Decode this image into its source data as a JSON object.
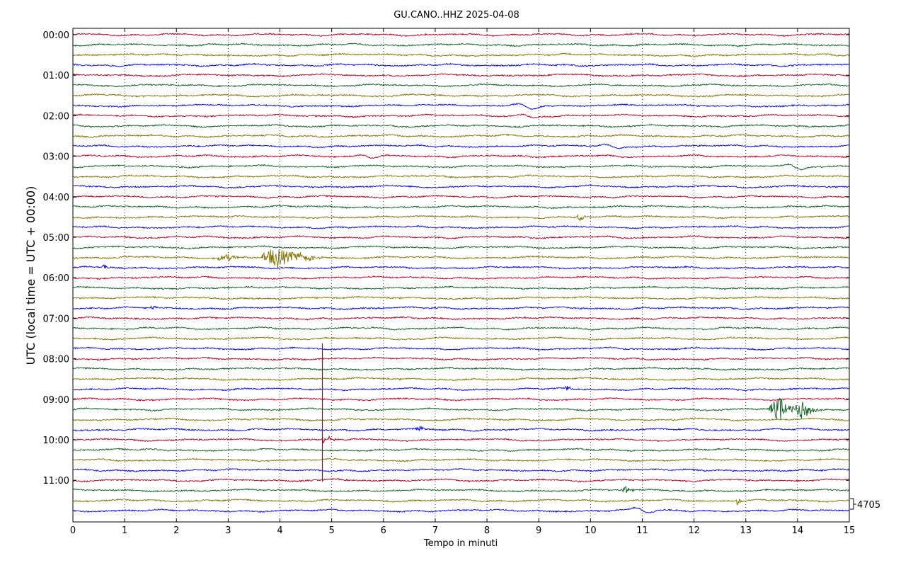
{
  "chart_data": {
    "type": "line",
    "title": "GU.CANO..HHZ 2025-04-08",
    "xlabel": "Tempo in minuti",
    "ylabel": "UTC (local time = UTC + 00:00)",
    "xlim": [
      0,
      15
    ],
    "x_ticks": [
      "0",
      "1",
      "2",
      "3",
      "4",
      "5",
      "6",
      "7",
      "8",
      "9",
      "10",
      "11",
      "12",
      "13",
      "14",
      "15"
    ],
    "y_ticks": [
      "00:00",
      "01:00",
      "02:00",
      "03:00",
      "04:00",
      "05:00",
      "06:00",
      "07:00",
      "08:00",
      "09:00",
      "10:00",
      "11:00"
    ],
    "trace_start_hour": 0,
    "trace_minutes": 15,
    "trace_count": 48,
    "color_cycle": [
      "#b00020",
      "#0b5a1e",
      "#7f7000",
      "#0000ee"
    ],
    "scale_label": "4705",
    "grid": "vertical dotted at each minute",
    "events": [
      {
        "trace_time": "01:45",
        "minute": 8.75,
        "amp": 0.35,
        "dur": 0.5,
        "kind": "wave"
      },
      {
        "trace_time": "02:00",
        "minute": 8.8,
        "amp": 0.3,
        "dur": 0.35,
        "kind": "wave"
      },
      {
        "trace_time": "02:45",
        "minute": 10.4,
        "amp": 0.25,
        "dur": 0.5,
        "kind": "wave"
      },
      {
        "trace_time": "03:00",
        "minute": 5.7,
        "amp": 0.3,
        "dur": 0.4,
        "kind": "wave"
      },
      {
        "trace_time": "03:15",
        "minute": 13.95,
        "amp": 0.35,
        "dur": 0.35,
        "kind": "wave"
      },
      {
        "trace_time": "04:30",
        "minute": 9.8,
        "amp": 0.55,
        "dur": 0.06,
        "kind": "burst"
      },
      {
        "trace_time": "05:30",
        "minute": 2.95,
        "amp": 0.55,
        "dur": 0.15,
        "kind": "burst"
      },
      {
        "trace_time": "05:30",
        "minute": 3.95,
        "amp": 1.3,
        "dur": 0.3,
        "kind": "burst"
      },
      {
        "trace_time": "05:30",
        "minute": 4.45,
        "amp": 0.6,
        "dur": 0.15,
        "kind": "burst"
      },
      {
        "trace_time": "05:45",
        "minute": 0.6,
        "amp": 0.5,
        "dur": 0.05,
        "kind": "burst"
      },
      {
        "trace_time": "06:45",
        "minute": 1.55,
        "amp": 0.4,
        "dur": 0.06,
        "kind": "burst"
      },
      {
        "trace_time": "08:45",
        "minute": 9.55,
        "amp": 0.6,
        "dur": 0.04,
        "kind": "burst"
      },
      {
        "trace_time": "09:15",
        "minute": 13.65,
        "amp": 1.5,
        "dur": 0.2,
        "kind": "burst"
      },
      {
        "trace_time": "09:15",
        "minute": 14.1,
        "amp": 1.4,
        "dur": 0.15,
        "kind": "burst"
      },
      {
        "trace_time": "09:45",
        "minute": 6.7,
        "amp": 0.45,
        "dur": 0.08,
        "kind": "burst"
      },
      {
        "trace_time": "10:00",
        "minute": 4.82,
        "amp": 1.6,
        "dur": 0.6,
        "kind": "spike"
      },
      {
        "trace_time": "11:15",
        "minute": 10.7,
        "amp": 0.5,
        "dur": 0.08,
        "kind": "burst"
      },
      {
        "trace_time": "11:30",
        "minute": 12.85,
        "amp": 0.5,
        "dur": 0.06,
        "kind": "burst"
      },
      {
        "trace_time": "11:45",
        "minute": 11.0,
        "amp": 0.4,
        "dur": 0.4,
        "kind": "wave"
      }
    ]
  }
}
